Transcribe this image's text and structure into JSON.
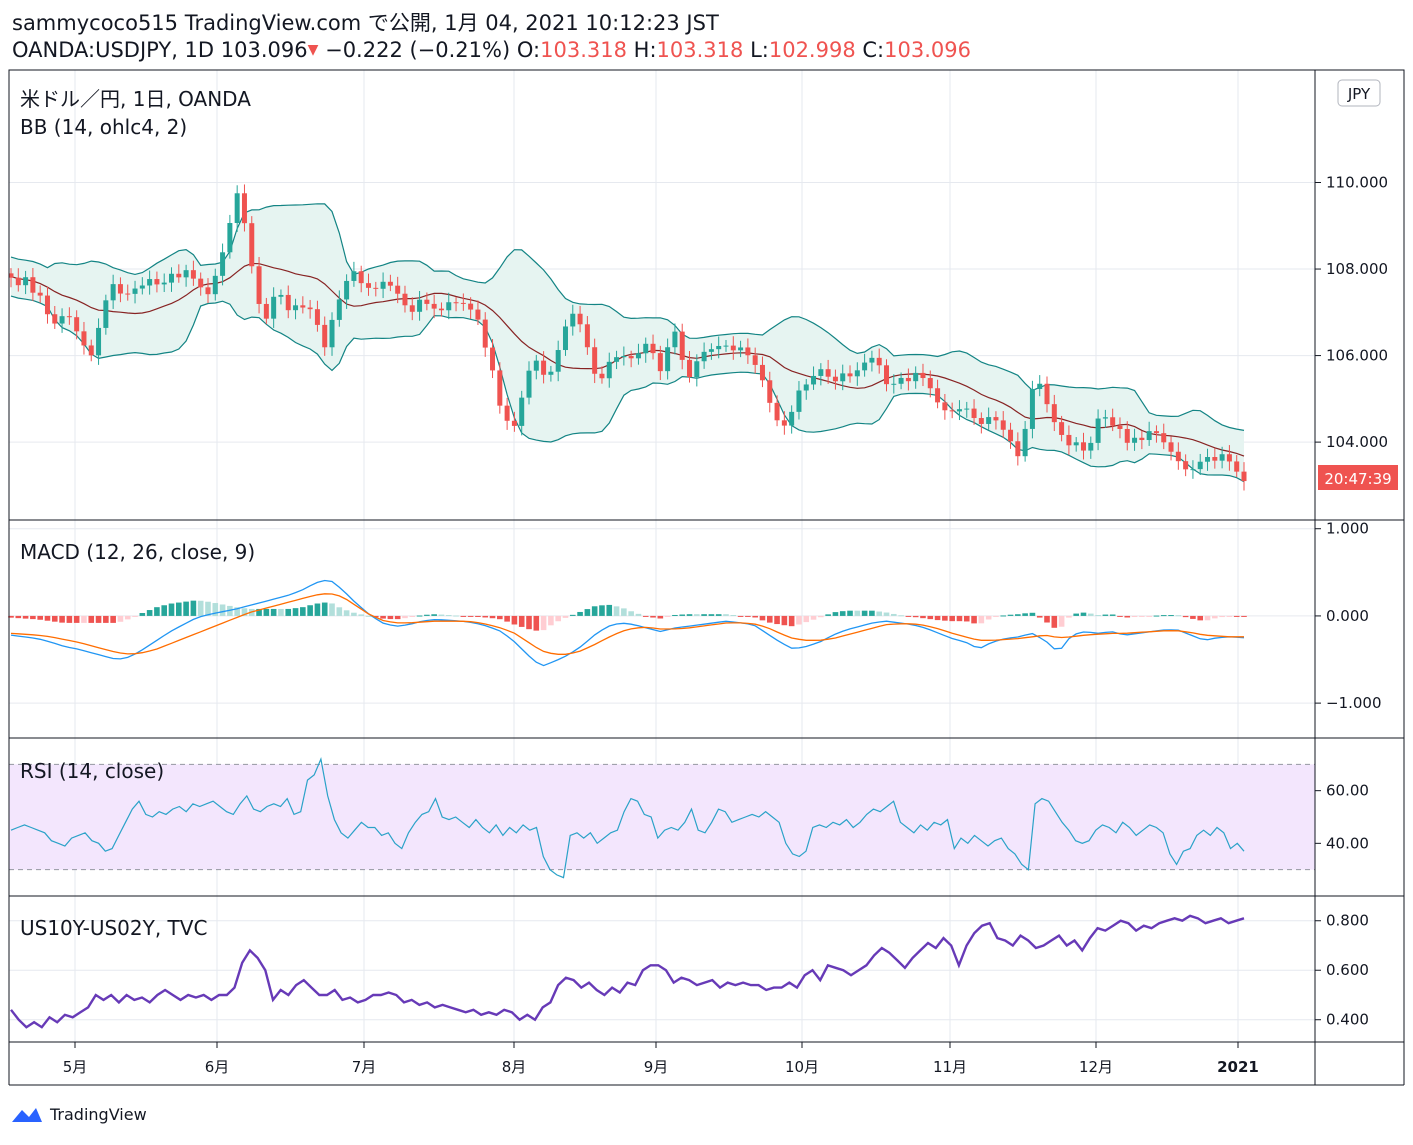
{
  "header": {
    "line1": "sammycoco515 TradingView.com で公開, 1月 04, 2021 10:12:23 JST",
    "symbol": "OANDA:USDJPY, 1D",
    "last": "103.096",
    "change_arrow": "▼",
    "change": "−0.222 (−0.21%)",
    "o_label": "O:",
    "o": "103.318",
    "h_label": "H:",
    "h": "103.318",
    "l_label": "L:",
    "l": "102.998",
    "c_label": "C:",
    "c": "103.096"
  },
  "footer": {
    "brand": "TradingView",
    "icon": "tradingview-logo-icon"
  },
  "colors": {
    "up": "#26a69a",
    "down": "#ef5350",
    "bb": "#138484",
    "bbfill": "#e6f4f1",
    "basis": "#872323",
    "macd": "#2196f3",
    "signal": "#ff6d00",
    "rsi": "#2aa2c8",
    "rsibg": "#f3e6fd",
    "spread": "#673ab7"
  },
  "chart_data": [
    {
      "type": "candlestick",
      "title": "米ドル／円, 1日, OANDA",
      "indicator": "BB (14, ohlc4, 2)",
      "currency_badge": "JPY",
      "countdown": "20:47:39",
      "y_ticks": [
        "110.000",
        "108.000",
        "106.000",
        "104.000"
      ],
      "y_tick_values": [
        110,
        108,
        106,
        104
      ],
      "ylim": [
        102.2,
        112.6
      ],
      "x_ticks": [
        "5月",
        "6月",
        "7月",
        "8月",
        "9月",
        "10月",
        "11月",
        "12月",
        "2021"
      ],
      "close_path": [
        107.8,
        107.6,
        107.9,
        107.4,
        107.6,
        107.0,
        106.9,
        106.6,
        107.1,
        106.8,
        106.5,
        106.2,
        106.0,
        106.6,
        107.2,
        107.7,
        107.5,
        107.3,
        107.6,
        107.5,
        107.7,
        107.8,
        107.6,
        107.7,
        107.9,
        107.8,
        108.0,
        107.8,
        107.7,
        107.3,
        107.6,
        108.1,
        108.6,
        109.3,
        109.9,
        108.9,
        108.0,
        107.2,
        106.8,
        107.3,
        107.6,
        106.9,
        107.3,
        107.0,
        107.2,
        107.0,
        106.6,
        106.1,
        106.9,
        107.3,
        107.7,
        108.0,
        107.7,
        107.6,
        107.5,
        107.6,
        107.8,
        107.5,
        107.4,
        107.1,
        107.0,
        107.3,
        107.2,
        107.1,
        107.0,
        107.2,
        107.3,
        107.1,
        107.3,
        106.9,
        106.8,
        106.0,
        105.6,
        104.8,
        104.5,
        104.3,
        104.9,
        105.5,
        106.0,
        105.7,
        105.4,
        105.8,
        106.3,
        106.8,
        107.0,
        106.7,
        106.2,
        105.6,
        105.4,
        105.8,
        106.0,
        105.9,
        106.1,
        105.8,
        106.2,
        106.3,
        106.0,
        105.6,
        106.2,
        106.6,
        106.0,
        105.4,
        105.8,
        106.0,
        106.2,
        106.1,
        106.3,
        106.2,
        106.1,
        106.2,
        106.0,
        105.8,
        105.5,
        105.0,
        104.6,
        104.3,
        104.5,
        104.9,
        105.4,
        105.3,
        105.6,
        105.7,
        105.5,
        105.4,
        105.6,
        105.5,
        105.6,
        105.8,
        105.9,
        106.0,
        105.6,
        105.2,
        105.4,
        105.5,
        105.4,
        105.6,
        105.5,
        105.3,
        105.0,
        104.7,
        104.8,
        104.6,
        104.9,
        104.7,
        104.5,
        104.4,
        104.6,
        104.5,
        104.3,
        104.1,
        103.6,
        103.9,
        105.1,
        105.4,
        105.3,
        104.6,
        104.4,
        104.1,
        103.9,
        104.0,
        103.8,
        103.9,
        104.5,
        104.7,
        104.3,
        104.5,
        104.1,
        103.9,
        104.2,
        104.0,
        104.3,
        104.2,
        104.0,
        103.8,
        103.6,
        103.4,
        103.3,
        103.5,
        103.6,
        103.7,
        103.5,
        103.8,
        103.5,
        103.3,
        103.1
      ]
    },
    {
      "type": "line",
      "title": "MACD (12, 26, close, 9)",
      "y_ticks": [
        "1.000",
        "0.000",
        "−1.000"
      ],
      "y_tick_values": [
        1,
        0,
        -1
      ],
      "ylim": [
        -1.4,
        1.1
      ],
      "series": [
        {
          "name": "",
          "role": "macd",
          "values": [
            -0.22,
            -0.24,
            -0.26,
            -0.3,
            -0.35,
            -0.38,
            -0.42,
            -0.46,
            -0.5,
            -0.47,
            -0.38,
            -0.28,
            -0.18,
            -0.1,
            -0.02,
            0.02,
            0.05,
            0.08,
            0.12,
            0.16,
            0.2,
            0.24,
            0.3,
            0.38,
            0.42,
            0.3,
            0.15,
            0.02,
            -0.08,
            -0.12,
            -0.1,
            -0.06,
            -0.04,
            -0.05,
            -0.06,
            -0.08,
            -0.12,
            -0.18,
            -0.3,
            -0.45,
            -0.58,
            -0.52,
            -0.45,
            -0.35,
            -0.22,
            -0.12,
            -0.08,
            -0.1,
            -0.14,
            -0.18,
            -0.14,
            -0.12,
            -0.1,
            -0.08,
            -0.06,
            -0.08,
            -0.1,
            -0.2,
            -0.3,
            -0.38,
            -0.35,
            -0.3,
            -0.22,
            -0.16,
            -0.12,
            -0.08,
            -0.06,
            -0.08,
            -0.1,
            -0.14,
            -0.2,
            -0.26,
            -0.3,
            -0.38,
            -0.3,
            -0.26,
            -0.24,
            -0.2,
            -0.28,
            -0.42,
            -0.22,
            -0.18,
            -0.2,
            -0.18,
            -0.22,
            -0.2,
            -0.18,
            -0.16,
            -0.16,
            -0.22,
            -0.28,
            -0.25,
            -0.24,
            -0.25
          ]
        },
        {
          "name": "",
          "role": "signal",
          "values": [
            -0.2,
            -0.21,
            -0.22,
            -0.24,
            -0.27,
            -0.3,
            -0.34,
            -0.38,
            -0.42,
            -0.44,
            -0.42,
            -0.38,
            -0.32,
            -0.26,
            -0.2,
            -0.14,
            -0.08,
            -0.02,
            0.04,
            0.08,
            0.12,
            0.16,
            0.2,
            0.24,
            0.26,
            0.22,
            0.12,
            0.02,
            -0.05,
            -0.08,
            -0.08,
            -0.07,
            -0.06,
            -0.06,
            -0.06,
            -0.07,
            -0.1,
            -0.14,
            -0.2,
            -0.3,
            -0.4,
            -0.44,
            -0.44,
            -0.4,
            -0.33,
            -0.25,
            -0.18,
            -0.14,
            -0.13,
            -0.15,
            -0.15,
            -0.14,
            -0.12,
            -0.1,
            -0.08,
            -0.08,
            -0.09,
            -0.13,
            -0.2,
            -0.26,
            -0.28,
            -0.28,
            -0.26,
            -0.22,
            -0.18,
            -0.14,
            -0.1,
            -0.09,
            -0.09,
            -0.11,
            -0.15,
            -0.2,
            -0.24,
            -0.28,
            -0.28,
            -0.27,
            -0.26,
            -0.24,
            -0.22,
            -0.25,
            -0.24,
            -0.22,
            -0.21,
            -0.2,
            -0.2,
            -0.19,
            -0.18,
            -0.17,
            -0.17,
            -0.19,
            -0.22,
            -0.23,
            -0.24,
            -0.24
          ]
        }
      ]
    },
    {
      "type": "line",
      "title": "RSI (14, close)",
      "y_ticks": [
        "60.00",
        "40.00"
      ],
      "y_tick_values": [
        60,
        40
      ],
      "ylim": [
        20,
        80
      ],
      "bands": [
        30,
        70
      ],
      "values": [
        45,
        46,
        47,
        46,
        45,
        44,
        41,
        40,
        39,
        42,
        43,
        44,
        41,
        40,
        37,
        38,
        43,
        48,
        53,
        56,
        51,
        50,
        52,
        51,
        53,
        54,
        52,
        55,
        54,
        55,
        56,
        54,
        52,
        51,
        55,
        58,
        53,
        52,
        54,
        55,
        54,
        57,
        51,
        52,
        64,
        66,
        72,
        58,
        49,
        44,
        42,
        45,
        48,
        46,
        46,
        43,
        44,
        40,
        38,
        44,
        48,
        51,
        52,
        57,
        50,
        49,
        50,
        48,
        46,
        49,
        46,
        44,
        47,
        43,
        46,
        44,
        47,
        45,
        46,
        35,
        30,
        28,
        27,
        43,
        44,
        42,
        44,
        40,
        42,
        44,
        45,
        52,
        57,
        56,
        51,
        50,
        42,
        45,
        46,
        45,
        48,
        53,
        45,
        44,
        48,
        53,
        52,
        48,
        49,
        50,
        51,
        50,
        52,
        50,
        48,
        40,
        36,
        35,
        37,
        46,
        47,
        46,
        48,
        47,
        49,
        46,
        48,
        51,
        53,
        52,
        54,
        56,
        48,
        46,
        44,
        47,
        45,
        48,
        47,
        49,
        38,
        42,
        40,
        43,
        41,
        39,
        41,
        42,
        38,
        36,
        32,
        30,
        55,
        57,
        56,
        52,
        48,
        45,
        41,
        40,
        41,
        45,
        47,
        46,
        44,
        48,
        46,
        43,
        45,
        47,
        46,
        44,
        36,
        32,
        37,
        38,
        43,
        45,
        43,
        46,
        44,
        38,
        40,
        37
      ]
    },
    {
      "type": "line",
      "title": "US10Y-US02Y, TVC",
      "y_ticks": [
        "0.800",
        "0.600",
        "0.400"
      ],
      "y_tick_values": [
        0.8,
        0.6,
        0.4
      ],
      "ylim": [
        0.31,
        0.9
      ],
      "values": [
        0.44,
        0.4,
        0.37,
        0.39,
        0.37,
        0.41,
        0.39,
        0.42,
        0.41,
        0.43,
        0.45,
        0.5,
        0.48,
        0.5,
        0.47,
        0.5,
        0.48,
        0.49,
        0.47,
        0.5,
        0.52,
        0.5,
        0.48,
        0.5,
        0.49,
        0.5,
        0.48,
        0.5,
        0.5,
        0.53,
        0.63,
        0.68,
        0.65,
        0.6,
        0.48,
        0.52,
        0.5,
        0.54,
        0.56,
        0.53,
        0.5,
        0.5,
        0.52,
        0.48,
        0.49,
        0.47,
        0.48,
        0.5,
        0.5,
        0.51,
        0.5,
        0.47,
        0.48,
        0.46,
        0.47,
        0.45,
        0.46,
        0.45,
        0.44,
        0.43,
        0.44,
        0.42,
        0.43,
        0.42,
        0.44,
        0.43,
        0.4,
        0.42,
        0.4,
        0.45,
        0.47,
        0.54,
        0.57,
        0.56,
        0.53,
        0.55,
        0.52,
        0.5,
        0.53,
        0.51,
        0.55,
        0.54,
        0.6,
        0.62,
        0.62,
        0.6,
        0.55,
        0.57,
        0.56,
        0.54,
        0.55,
        0.56,
        0.53,
        0.55,
        0.54,
        0.55,
        0.54,
        0.54,
        0.52,
        0.53,
        0.53,
        0.55,
        0.53,
        0.58,
        0.6,
        0.56,
        0.62,
        0.61,
        0.6,
        0.58,
        0.6,
        0.62,
        0.66,
        0.69,
        0.67,
        0.64,
        0.61,
        0.65,
        0.68,
        0.71,
        0.69,
        0.73,
        0.7,
        0.62,
        0.7,
        0.75,
        0.78,
        0.79,
        0.73,
        0.72,
        0.7,
        0.74,
        0.72,
        0.69,
        0.7,
        0.72,
        0.74,
        0.7,
        0.72,
        0.68,
        0.73,
        0.77,
        0.76,
        0.78,
        0.8,
        0.79,
        0.76,
        0.78,
        0.77,
        0.79,
        0.8,
        0.81,
        0.8,
        0.82,
        0.81,
        0.79,
        0.8,
        0.81,
        0.79,
        0.8,
        0.81
      ]
    }
  ]
}
